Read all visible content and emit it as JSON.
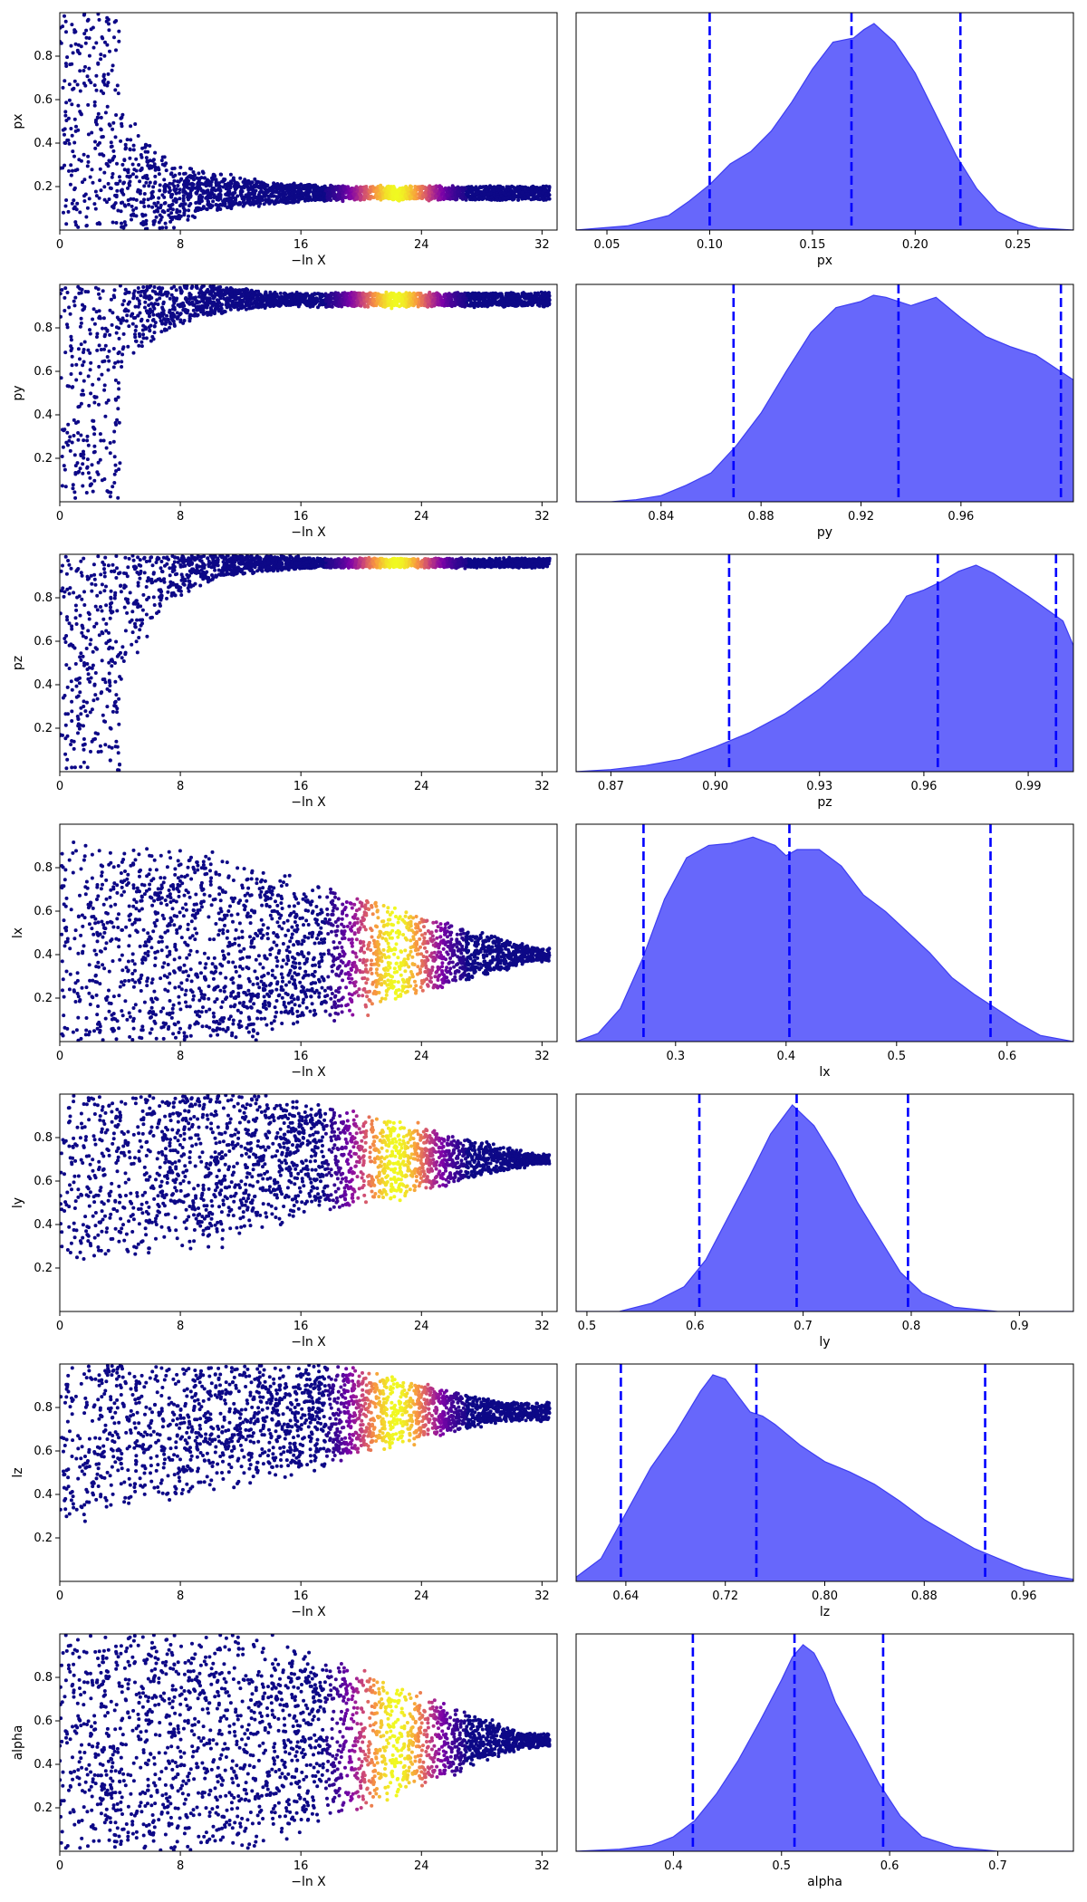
{
  "trace_xlabel": "−ln X",
  "trace_x_ticks": [
    "0",
    "8",
    "16",
    "24",
    "32"
  ],
  "chart_data": [
    {
      "type": "scatter",
      "parameter": "px",
      "x_range": [
        0,
        33
      ],
      "y_range": [
        0,
        1
      ],
      "yticks": [
        "0.2",
        "0.4",
        "0.6",
        "0.8"
      ],
      "converged_value": 0.17,
      "kde": {
        "xlabel": "px",
        "xlim": [
          0.035,
          0.277
        ],
        "xticks": [
          0.05,
          0.1,
          0.15,
          0.2,
          0.25
        ],
        "xtick_labels": [
          "0.05",
          "0.10",
          "0.15",
          "0.20",
          "0.25"
        ],
        "quantiles": [
          0.1,
          0.169,
          0.222
        ],
        "density_x": [
          0.035,
          0.06,
          0.08,
          0.09,
          0.1,
          0.11,
          0.12,
          0.13,
          0.14,
          0.15,
          0.16,
          0.17,
          0.175,
          0.18,
          0.19,
          0.2,
          0.21,
          0.22,
          0.23,
          0.24,
          0.25,
          0.26,
          0.277
        ],
        "density_y": [
          0.0,
          0.02,
          0.07,
          0.14,
          0.22,
          0.32,
          0.38,
          0.48,
          0.62,
          0.78,
          0.91,
          0.93,
          0.97,
          1.0,
          0.91,
          0.76,
          0.56,
          0.36,
          0.2,
          0.09,
          0.04,
          0.01,
          0.0
        ]
      }
    },
    {
      "type": "scatter",
      "parameter": "py",
      "x_range": [
        0,
        33
      ],
      "y_range": [
        0,
        1
      ],
      "yticks": [
        "0.2",
        "0.4",
        "0.6",
        "0.8"
      ],
      "converged_value": 0.93,
      "kde": {
        "xlabel": "py",
        "xlim": [
          0.806,
          1.005
        ],
        "xticks": [
          0.84,
          0.88,
          0.92,
          0.96
        ],
        "xtick_labels": [
          "0.84",
          "0.88",
          "0.92",
          "0.96"
        ],
        "quantiles": [
          0.869,
          0.935,
          1.0
        ],
        "density_x": [
          0.806,
          0.82,
          0.83,
          0.84,
          0.85,
          0.86,
          0.87,
          0.88,
          0.89,
          0.9,
          0.91,
          0.92,
          0.925,
          0.93,
          0.94,
          0.945,
          0.95,
          0.96,
          0.97,
          0.98,
          0.99,
          1.0,
          1.005
        ],
        "density_y": [
          0.0,
          0.0,
          0.01,
          0.03,
          0.08,
          0.14,
          0.27,
          0.43,
          0.63,
          0.82,
          0.94,
          0.97,
          1.0,
          0.99,
          0.95,
          0.97,
          0.99,
          0.89,
          0.8,
          0.75,
          0.71,
          0.63,
          0.59
        ]
      }
    },
    {
      "type": "scatter",
      "parameter": "pz",
      "x_range": [
        0,
        33
      ],
      "y_range": [
        0,
        1
      ],
      "yticks": [
        "0.2",
        "0.4",
        "0.6",
        "0.8"
      ],
      "converged_value": 0.96,
      "kde": {
        "xlabel": "pz",
        "xlim": [
          0.86,
          1.003
        ],
        "xticks": [
          0.87,
          0.9,
          0.93,
          0.96,
          0.99
        ],
        "xtick_labels": [
          "0.87",
          "0.90",
          "0.93",
          "0.96",
          "0.99"
        ],
        "quantiles": [
          0.904,
          0.964,
          0.998
        ],
        "density_x": [
          0.86,
          0.87,
          0.88,
          0.89,
          0.9,
          0.91,
          0.92,
          0.93,
          0.94,
          0.95,
          0.955,
          0.96,
          0.965,
          0.97,
          0.975,
          0.98,
          0.99,
          1.0,
          1.003
        ],
        "density_y": [
          0.0,
          0.01,
          0.03,
          0.06,
          0.12,
          0.19,
          0.28,
          0.4,
          0.55,
          0.72,
          0.85,
          0.88,
          0.92,
          0.97,
          1.0,
          0.96,
          0.85,
          0.73,
          0.61
        ]
      }
    },
    {
      "type": "scatter",
      "parameter": "lx",
      "x_range": [
        0,
        33
      ],
      "y_range": [
        0,
        1
      ],
      "yticks": [
        "0.2",
        "0.4",
        "0.6",
        "0.8"
      ],
      "converged_value": 0.4,
      "kde": {
        "xlabel": "lx",
        "xlim": [
          0.21,
          0.66
        ],
        "xticks": [
          0.3,
          0.4,
          0.5,
          0.6
        ],
        "xtick_labels": [
          "0.3",
          "0.4",
          "0.5",
          "0.6"
        ],
        "quantiles": [
          0.271,
          0.403,
          0.585
        ],
        "density_x": [
          0.21,
          0.23,
          0.25,
          0.27,
          0.29,
          0.31,
          0.33,
          0.35,
          0.37,
          0.39,
          0.4,
          0.41,
          0.43,
          0.45,
          0.47,
          0.49,
          0.51,
          0.53,
          0.55,
          0.57,
          0.59,
          0.61,
          0.63,
          0.66
        ],
        "density_y": [
          0.0,
          0.04,
          0.16,
          0.4,
          0.69,
          0.89,
          0.95,
          0.96,
          0.99,
          0.95,
          0.9,
          0.93,
          0.93,
          0.85,
          0.71,
          0.63,
          0.53,
          0.43,
          0.31,
          0.23,
          0.16,
          0.09,
          0.03,
          0.0
        ]
      }
    },
    {
      "type": "scatter",
      "parameter": "ly",
      "x_range": [
        0,
        33
      ],
      "y_range": [
        0,
        1
      ],
      "yticks": [
        "0.2",
        "0.4",
        "0.6",
        "0.8"
      ],
      "converged_value": 0.7,
      "kde": {
        "xlabel": "ly",
        "xlim": [
          0.49,
          0.95
        ],
        "xticks": [
          0.5,
          0.6,
          0.7,
          0.8,
          0.9
        ],
        "xtick_labels": [
          "0.5",
          "0.6",
          "0.7",
          "0.8",
          "0.9"
        ],
        "quantiles": [
          0.604,
          0.694,
          0.797
        ],
        "density_x": [
          0.49,
          0.53,
          0.56,
          0.59,
          0.61,
          0.63,
          0.65,
          0.67,
          0.69,
          0.71,
          0.73,
          0.75,
          0.77,
          0.79,
          0.81,
          0.84,
          0.88,
          0.95
        ],
        "density_y": [
          0.0,
          0.0,
          0.04,
          0.12,
          0.25,
          0.45,
          0.65,
          0.86,
          1.0,
          0.9,
          0.73,
          0.53,
          0.36,
          0.19,
          0.09,
          0.02,
          0.0,
          0.0
        ]
      }
    },
    {
      "type": "scatter",
      "parameter": "lz",
      "x_range": [
        0,
        33
      ],
      "y_range": [
        0,
        1
      ],
      "yticks": [
        "0.2",
        "0.4",
        "0.6",
        "0.8"
      ],
      "converged_value": 0.78,
      "kde": {
        "xlabel": "lz",
        "xlim": [
          0.6,
          1.0
        ],
        "xticks": [
          0.64,
          0.72,
          0.8,
          0.88,
          0.96
        ],
        "xtick_labels": [
          "0.64",
          "0.72",
          "0.80",
          "0.88",
          "0.96"
        ],
        "quantiles": [
          0.636,
          0.745,
          0.929
        ],
        "density_x": [
          0.6,
          0.62,
          0.64,
          0.66,
          0.68,
          0.7,
          0.71,
          0.72,
          0.73,
          0.74,
          0.75,
          0.76,
          0.78,
          0.8,
          0.82,
          0.84,
          0.86,
          0.88,
          0.9,
          0.92,
          0.94,
          0.96,
          0.98,
          1.0
        ],
        "density_y": [
          0.02,
          0.11,
          0.33,
          0.55,
          0.72,
          0.92,
          1.0,
          0.98,
          0.9,
          0.82,
          0.8,
          0.76,
          0.66,
          0.58,
          0.53,
          0.47,
          0.39,
          0.3,
          0.23,
          0.16,
          0.11,
          0.06,
          0.03,
          0.01
        ]
      }
    },
    {
      "type": "scatter",
      "parameter": "alpha",
      "x_range": [
        0,
        33
      ],
      "y_range": [
        0,
        1
      ],
      "yticks": [
        "0.2",
        "0.4",
        "0.6",
        "0.8"
      ],
      "converged_value": 0.51,
      "kde": {
        "xlabel": "alpha",
        "xlim": [
          0.31,
          0.77
        ],
        "xticks": [
          0.4,
          0.5,
          0.6,
          0.7
        ],
        "xtick_labels": [
          "0.4",
          "0.5",
          "0.6",
          "0.7"
        ],
        "quantiles": [
          0.418,
          0.512,
          0.594
        ],
        "density_x": [
          0.31,
          0.35,
          0.38,
          0.4,
          0.42,
          0.44,
          0.46,
          0.48,
          0.5,
          0.51,
          0.52,
          0.53,
          0.54,
          0.55,
          0.57,
          0.59,
          0.61,
          0.63,
          0.66,
          0.7,
          0.77
        ],
        "density_y": [
          0.0,
          0.01,
          0.03,
          0.07,
          0.15,
          0.28,
          0.44,
          0.63,
          0.83,
          0.94,
          1.0,
          0.96,
          0.86,
          0.72,
          0.53,
          0.33,
          0.17,
          0.07,
          0.02,
          0.0,
          0.0
        ]
      }
    }
  ]
}
